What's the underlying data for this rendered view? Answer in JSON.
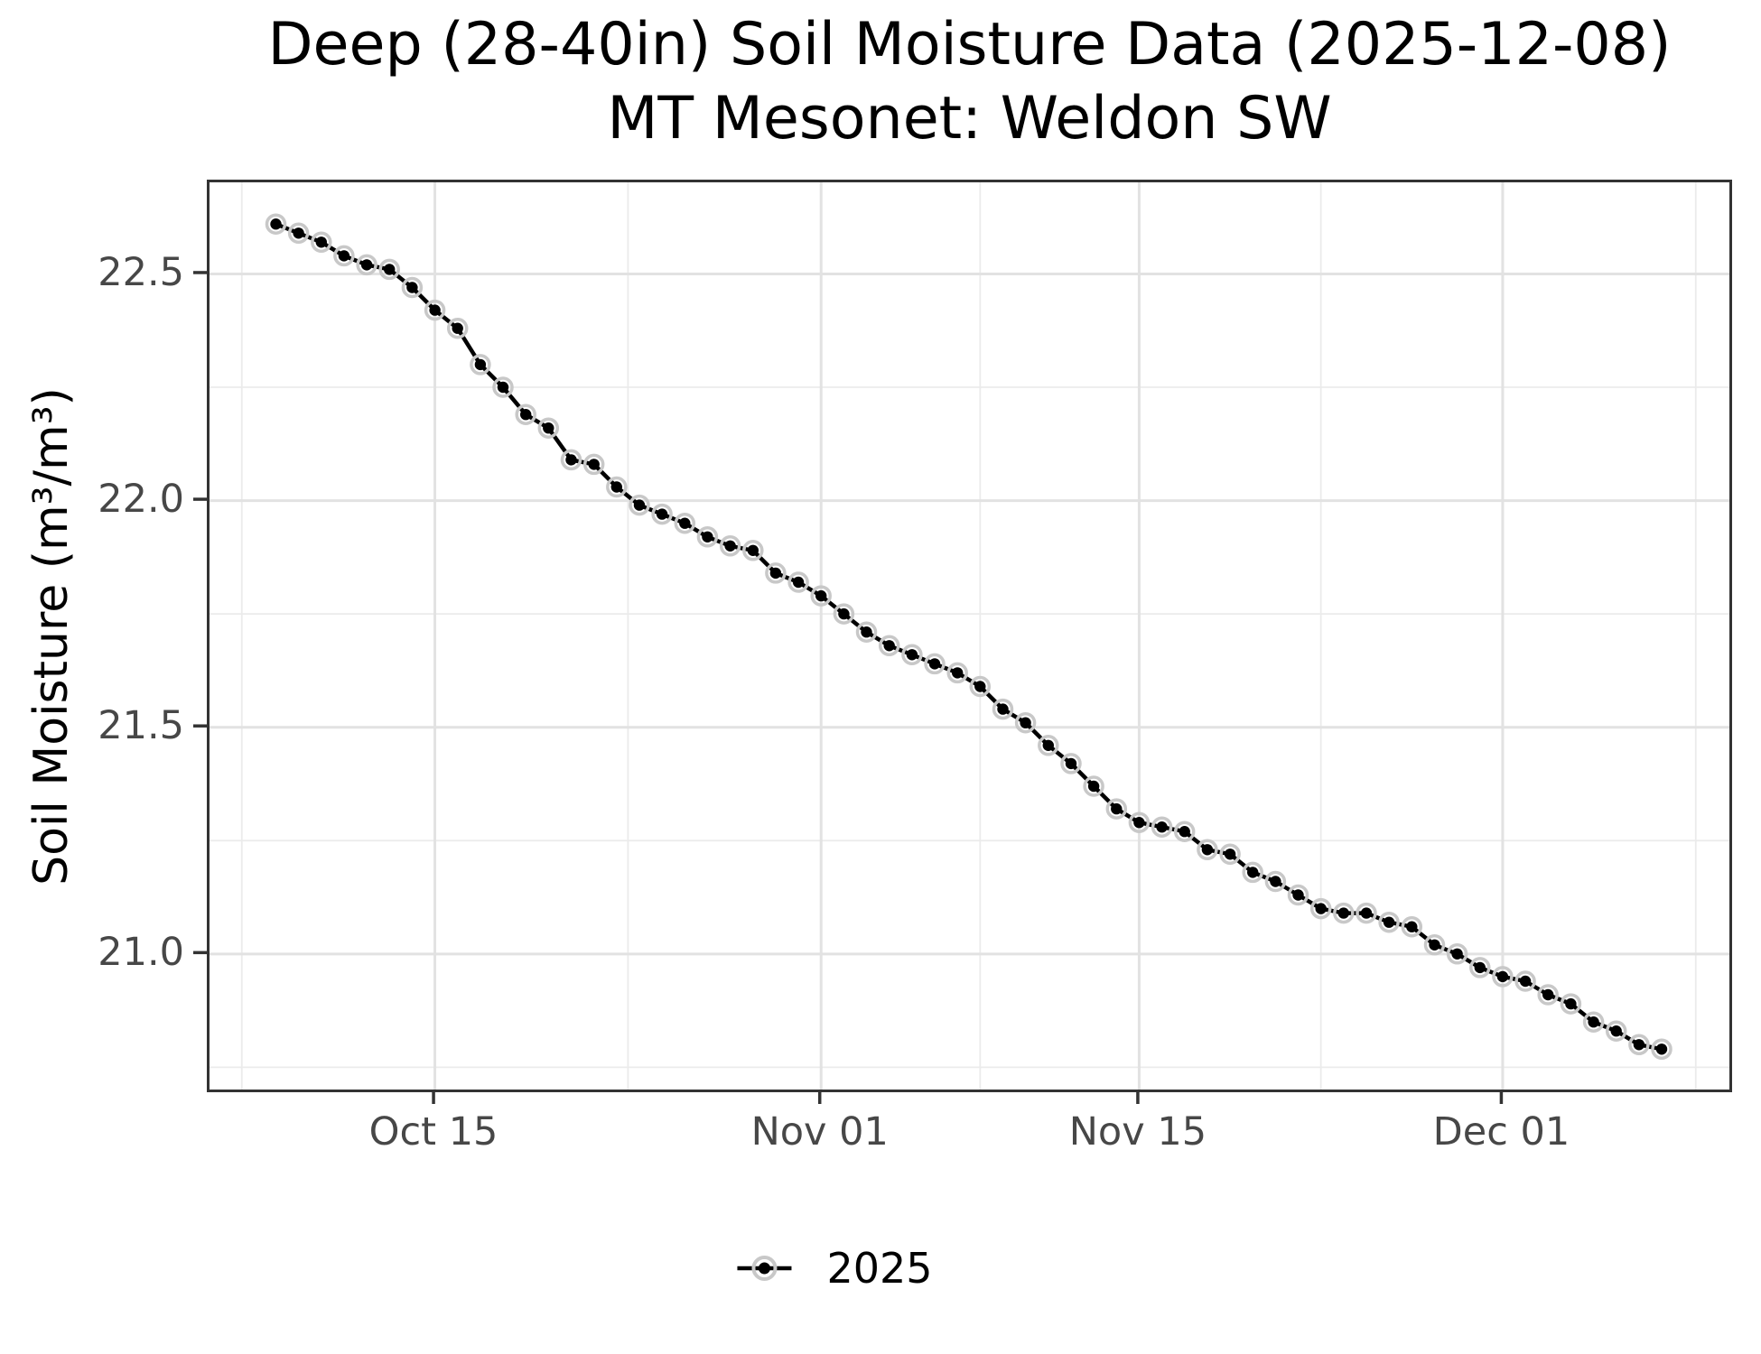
{
  "title": {
    "line1": "Deep (28-40in) Soil Moisture Data (2025-12-08)",
    "line2": "MT Mesonet: Weldon SW"
  },
  "axes": {
    "y_title": "Soil Moisture (m³/m³)",
    "x_title": "",
    "y_tick_labels": [
      "22.5",
      "22.0",
      "21.5",
      "21.0"
    ],
    "x_tick_labels": [
      "Oct 15",
      "Nov 01",
      "Nov 15",
      "Dec 01"
    ]
  },
  "legend": {
    "items": [
      {
        "label": "2025"
      }
    ]
  },
  "chart_data": {
    "type": "line",
    "title": "Deep (28-40in) Soil Moisture Data (2025-12-08)",
    "subtitle": "MT Mesonet: Weldon SW",
    "xlabel": "",
    "ylabel": "Soil Moisture (m³/m³)",
    "grid": true,
    "legend_position": "bottom",
    "series": [
      {
        "name": "2025",
        "x": [
          "2025-10-08",
          "2025-10-09",
          "2025-10-10",
          "2025-10-11",
          "2025-10-12",
          "2025-10-13",
          "2025-10-14",
          "2025-10-15",
          "2025-10-16",
          "2025-10-17",
          "2025-10-18",
          "2025-10-19",
          "2025-10-20",
          "2025-10-21",
          "2025-10-22",
          "2025-10-23",
          "2025-10-24",
          "2025-10-25",
          "2025-10-26",
          "2025-10-27",
          "2025-10-28",
          "2025-10-29",
          "2025-10-30",
          "2025-10-31",
          "2025-11-01",
          "2025-11-02",
          "2025-11-03",
          "2025-11-04",
          "2025-11-05",
          "2025-11-06",
          "2025-11-07",
          "2025-11-08",
          "2025-11-09",
          "2025-11-10",
          "2025-11-11",
          "2025-11-12",
          "2025-11-13",
          "2025-11-14",
          "2025-11-15",
          "2025-11-16",
          "2025-11-17",
          "2025-11-18",
          "2025-11-19",
          "2025-11-20",
          "2025-11-21",
          "2025-11-22",
          "2025-11-23",
          "2025-11-24",
          "2025-11-25",
          "2025-11-26",
          "2025-11-27",
          "2025-11-28",
          "2025-11-29",
          "2025-11-30",
          "2025-12-01",
          "2025-12-02",
          "2025-12-03",
          "2025-12-04",
          "2025-12-05",
          "2025-12-06",
          "2025-12-07",
          "2025-12-08"
        ],
        "values": [
          22.61,
          22.59,
          22.57,
          22.54,
          22.52,
          22.51,
          22.47,
          22.42,
          22.38,
          22.3,
          22.25,
          22.19,
          22.16,
          22.09,
          22.08,
          22.03,
          21.99,
          21.97,
          21.95,
          21.92,
          21.9,
          21.89,
          21.84,
          21.82,
          21.79,
          21.75,
          21.71,
          21.68,
          21.66,
          21.64,
          21.62,
          21.59,
          21.54,
          21.51,
          21.46,
          21.42,
          21.37,
          21.32,
          21.29,
          21.28,
          21.27,
          21.23,
          21.22,
          21.18,
          21.16,
          21.13,
          21.1,
          21.09,
          21.09,
          21.07,
          21.06,
          21.02,
          21.0,
          20.97,
          20.95,
          20.94,
          20.91,
          20.89,
          20.85,
          20.83,
          20.8,
          20.79
        ]
      }
    ],
    "y_ticks": [
      22.5,
      22.0,
      21.5,
      21.0
    ],
    "y_minor_ticks": [
      22.25,
      21.75,
      21.25,
      20.75
    ],
    "x_ticks": [
      {
        "label": "Oct 15",
        "index": 7
      },
      {
        "label": "Nov 01",
        "index": 24
      },
      {
        "label": "Nov 15",
        "index": 38
      },
      {
        "label": "Dec 01",
        "index": 54
      }
    ],
    "x_minor_indices": [
      -1.5,
      15.5,
      31,
      46,
      62.5
    ],
    "ylim": [
      20.701,
      22.702
    ],
    "xlim_day_offset": [
      -2.92,
      63.98
    ],
    "style": {
      "line_color": "#000000",
      "point_color": "#000000",
      "point_halo_color": "#c8c8c8",
      "grid_major_color": "#e2e2e2",
      "grid_minor_color": "#ebebeb",
      "panel_border_color": "#333333",
      "tick_color": "#333333",
      "tick_label_color": "#474747"
    }
  }
}
